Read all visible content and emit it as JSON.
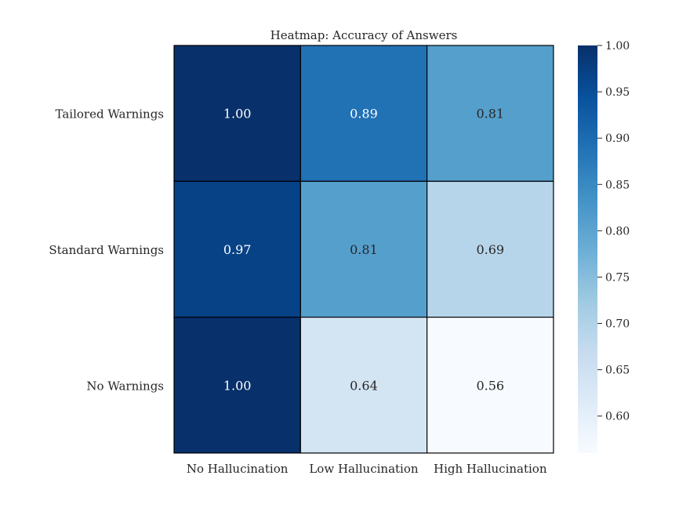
{
  "chart_data": {
    "type": "heatmap",
    "title": "Heatmap: Accuracy of Answers",
    "xlabel": "",
    "ylabel": "",
    "x_categories": [
      "No Hallucination",
      "Low Hallucination",
      "High Hallucination"
    ],
    "y_categories": [
      "Tailored Warnings",
      "Standard Warnings",
      "No Warnings"
    ],
    "values": [
      [
        1.0,
        0.89,
        0.81
      ],
      [
        0.97,
        0.81,
        0.69
      ],
      [
        1.0,
        0.64,
        0.56
      ]
    ],
    "value_labels": [
      [
        "1.00",
        "0.89",
        "0.81"
      ],
      [
        "0.97",
        "0.81",
        "0.69"
      ],
      [
        "1.00",
        "0.64",
        "0.56"
      ]
    ],
    "colorbar": {
      "colormap": "Blues",
      "min": 0.56,
      "max": 1.0,
      "ticks": [
        1.0,
        0.95,
        0.9,
        0.85,
        0.8,
        0.75,
        0.7,
        0.65,
        0.6
      ],
      "tick_labels": [
        "1.00",
        "0.95",
        "0.90",
        "0.85",
        "0.80",
        "0.75",
        "0.70",
        "0.65",
        "0.60"
      ]
    }
  }
}
